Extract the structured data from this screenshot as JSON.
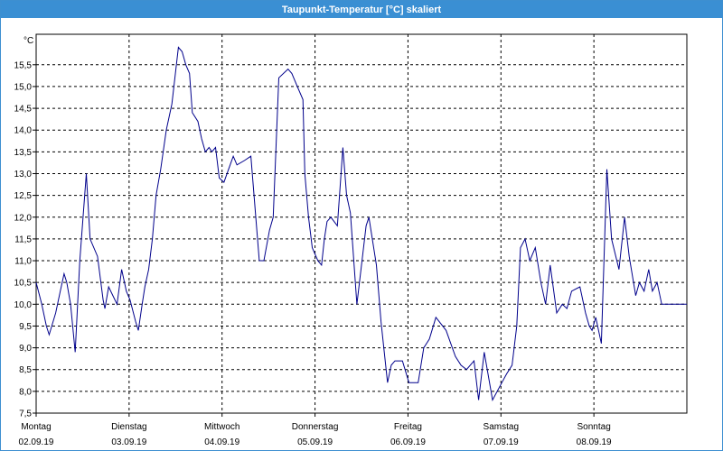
{
  "window": {
    "title": "Taupunkt-Temperatur [°C] skaliert"
  },
  "chart_data": {
    "type": "line",
    "title": "Taupunkt-Temperatur [°C] skaliert",
    "y_unit": "°C",
    "ylim": [
      7.5,
      16.2
    ],
    "y_ticks": [
      7.5,
      8.0,
      8.5,
      9.0,
      9.5,
      10.0,
      10.5,
      11.0,
      11.5,
      12.0,
      12.5,
      13.0,
      13.5,
      14.0,
      14.5,
      15.0,
      15.5
    ],
    "y_tick_labels": [
      "7,5",
      "8,0",
      "8,5",
      "9,0",
      "9,5",
      "10,0",
      "10,5",
      "11,0",
      "11,5",
      "12,0",
      "12,5",
      "13,0",
      "13,5",
      "14,0",
      "14,5",
      "15,0",
      "15,5"
    ],
    "xlim": [
      0,
      7
    ],
    "x_days": [
      {
        "day": "Montag",
        "date": "02.09.19"
      },
      {
        "day": "Dienstag",
        "date": "03.09.19"
      },
      {
        "day": "Mittwoch",
        "date": "04.09.19"
      },
      {
        "day": "Donnerstag",
        "date": "05.09.19"
      },
      {
        "day": "Freitag",
        "date": "06.09.19"
      },
      {
        "day": "Samstag",
        "date": "07.09.19"
      },
      {
        "day": "Sonntag",
        "date": "08.09.19"
      }
    ],
    "grid": true,
    "line_color": "#00008b",
    "series": [
      {
        "x": [
          0.0,
          0.06,
          0.11,
          0.14,
          0.21,
          0.26,
          0.3,
          0.33,
          0.37,
          0.42,
          0.47,
          0.54,
          0.58,
          0.66,
          0.72,
          0.74,
          0.78,
          0.87,
          0.92,
          0.97,
          1.01,
          1.07,
          1.1,
          1.14,
          1.17,
          1.21,
          1.25,
          1.29,
          1.34,
          1.4,
          1.46,
          1.53,
          1.57,
          1.61,
          1.65,
          1.68,
          1.74,
          1.78,
          1.82,
          1.86,
          1.89,
          1.93,
          1.97,
          2.02,
          2.07,
          2.12,
          2.16,
          2.24,
          2.31,
          2.4,
          2.45,
          2.51,
          2.55,
          2.61,
          2.71,
          2.75,
          2.81,
          2.87,
          2.89,
          2.93,
          2.97,
          3.03,
          3.07,
          3.1,
          3.13,
          3.17,
          3.24,
          3.3,
          3.34,
          3.38,
          3.45,
          3.55,
          3.58,
          3.66,
          3.71,
          3.75,
          3.78,
          3.82,
          3.86,
          3.94,
          4.01,
          4.11,
          4.17,
          4.23,
          4.3,
          4.41,
          4.51,
          4.57,
          4.63,
          4.71,
          4.76,
          4.82,
          4.91,
          5.01,
          5.06,
          5.12,
          5.17,
          5.21,
          5.26,
          5.31,
          5.37,
          5.43,
          5.48,
          5.53,
          5.6,
          5.66,
          5.71,
          5.76,
          5.85,
          5.91,
          5.95,
          5.98,
          6.02,
          6.08,
          6.14,
          6.19,
          6.27,
          6.33,
          6.38,
          6.45,
          6.49,
          6.54,
          6.59,
          6.63,
          6.68,
          6.73,
          6.79,
          6.82,
          6.86,
          6.93,
          6.97,
          7.0
        ],
        "y": [
          10.5,
          10.0,
          9.5,
          9.3,
          9.8,
          10.3,
          10.7,
          10.5,
          10.0,
          8.9,
          11.0,
          13.0,
          11.5,
          11.1,
          10.1,
          9.9,
          10.4,
          10.0,
          10.8,
          10.3,
          10.1,
          9.6,
          9.4,
          10.0,
          10.4,
          10.8,
          11.5,
          12.5,
          13.1,
          14.0,
          14.6,
          15.9,
          15.8,
          15.5,
          15.3,
          14.4,
          14.2,
          13.8,
          13.5,
          13.6,
          13.5,
          13.6,
          12.9,
          12.8,
          13.1,
          13.4,
          13.2,
          13.3,
          13.4,
          11.0,
          11.0,
          11.7,
          12.0,
          15.2,
          15.4,
          15.3,
          15.0,
          14.7,
          13.0,
          12.0,
          11.3,
          11.0,
          10.9,
          11.5,
          11.9,
          12.0,
          11.8,
          13.6,
          12.5,
          12.1,
          10.0,
          11.8,
          12.0,
          10.9,
          9.6,
          8.8,
          8.2,
          8.6,
          8.7,
          8.7,
          8.2,
          8.2,
          9.0,
          9.2,
          9.7,
          9.4,
          8.8,
          8.6,
          8.5,
          8.7,
          7.8,
          8.9,
          7.8,
          8.2,
          8.4,
          8.6,
          9.5,
          11.3,
          11.5,
          11.0,
          11.3,
          10.5,
          10.0,
          10.9,
          9.8,
          10.0,
          9.9,
          10.3,
          10.4,
          9.8,
          9.5,
          9.4,
          9.7,
          9.1,
          13.1,
          11.5,
          10.8,
          12.0,
          11.1,
          10.2,
          10.5,
          10.3,
          10.8,
          10.3,
          10.5,
          10.0,
          10.0,
          10.0,
          10.0,
          10.0,
          10.0,
          10.0
        ]
      }
    ]
  }
}
